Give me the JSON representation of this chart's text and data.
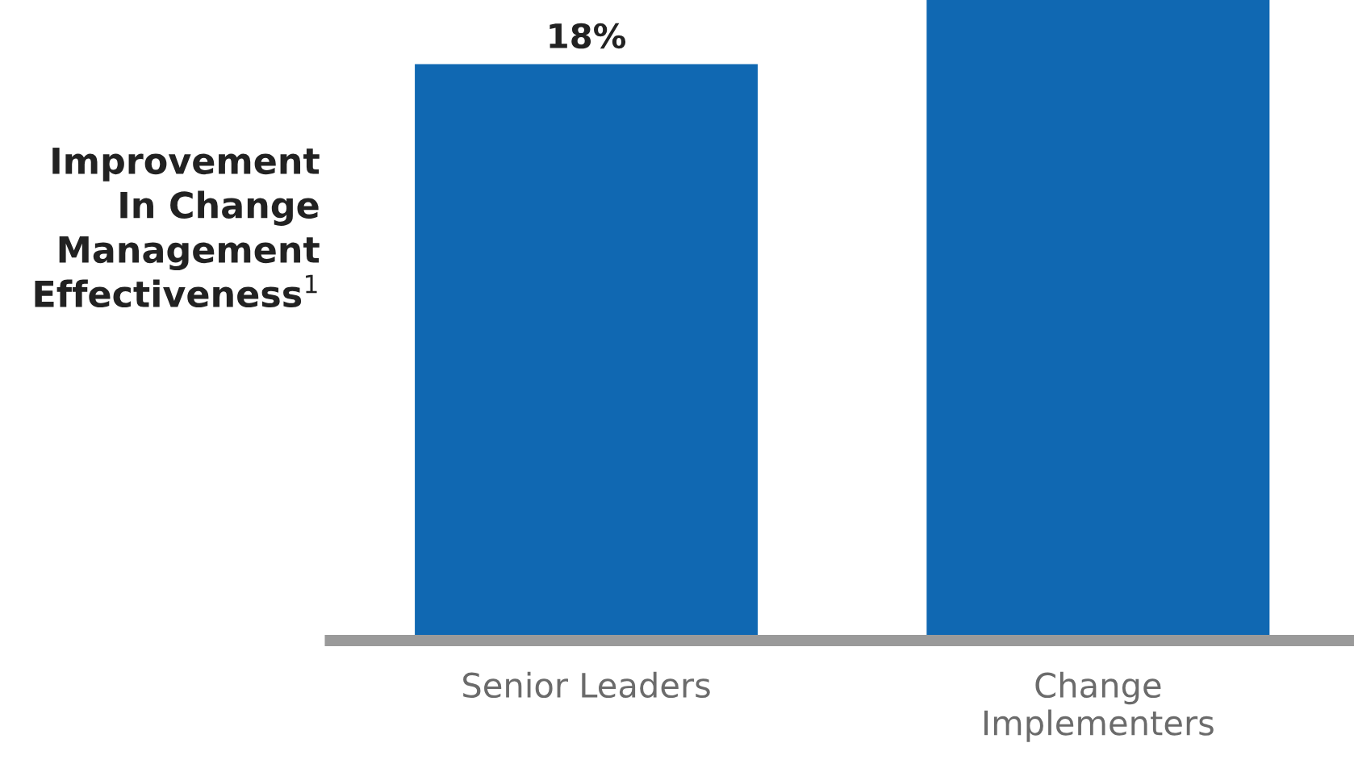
{
  "chart_data": {
    "type": "bar",
    "ylabel": "Improvement\nIn Change\nManagement\nEffectiveness$^{1}$",
    "categories": [
      "Senior Leaders",
      "Change\nImplementers"
    ],
    "values": [
      18,
      20
    ],
    "value_labels": [
      "18%",
      null
    ],
    "color": "#1068b2",
    "grid": false,
    "legend": false
  }
}
